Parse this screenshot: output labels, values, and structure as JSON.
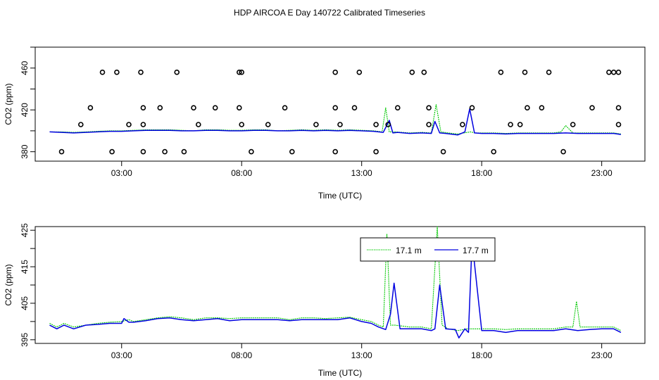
{
  "title": "HDP AIRCOA E  Day 140722  Calibrated Timeseries",
  "colors": {
    "series_a": "#00c800",
    "series_b": "#0000e0",
    "points": "#000000",
    "frame": "#000000"
  },
  "chart_data": [
    {
      "type": "scatter",
      "xlabel": "Time (UTC)",
      "ylabel": "CO2 (ppm)",
      "xlim": [
        -0.6,
        24.8
      ],
      "ylim": [
        371,
        480
      ],
      "xticks": [
        3,
        8,
        13,
        18,
        23
      ],
      "xtick_labels": [
        "03:00",
        "08:00",
        "13:00",
        "18:00",
        "23:00"
      ],
      "yticks": [
        380,
        400,
        420,
        440,
        460,
        480
      ],
      "ytick_labels": [
        "380",
        "",
        "420",
        "",
        "460",
        ""
      ],
      "grid": false,
      "points_x": [
        0.5,
        1.3,
        2.6,
        3.9,
        4.8,
        5.6,
        1.7,
        2.2,
        3.3,
        3.9,
        4.6,
        6.2,
        6.9,
        8.0,
        9.1,
        9.8,
        11.1,
        12.1,
        12.7,
        13.6,
        14.1,
        14.5,
        15.8,
        15.8,
        16.4,
        17.2,
        17.6,
        18.5,
        19.2,
        19.6,
        19.9,
        20.5,
        21.4,
        21.8,
        22.6,
        23.5,
        23.7,
        23.7,
        3.9,
        2.8,
        6.0,
        5.3,
        7.9,
        8.4,
        10.1,
        11.9,
        11.9,
        12.9,
        13.6,
        15.1,
        15.6,
        18.8,
        19.8,
        20.8,
        23.3,
        23.7,
        8.0,
        11.9,
        3.8,
        7.9
      ],
      "points_y": [
        380,
        406,
        380,
        380,
        380,
        380,
        422,
        456,
        406,
        422,
        422,
        406,
        422,
        406,
        406,
        422,
        406,
        406,
        422,
        380,
        406,
        422,
        406,
        422,
        380,
        406,
        422,
        380,
        406,
        406,
        422,
        422,
        380,
        406,
        422,
        456,
        422,
        406,
        406,
        456,
        422,
        456,
        422,
        380,
        380,
        380,
        422,
        456,
        406,
        456,
        456,
        456,
        456,
        456,
        456,
        456,
        456,
        456,
        456,
        456
      ],
      "series": [
        {
          "name": "17.1 m",
          "color": "#00c800",
          "x": [
            0,
            0.5,
            1,
            1.5,
            2,
            2.5,
            3,
            3.5,
            4,
            4.5,
            5,
            5.5,
            6,
            6.5,
            7,
            7.5,
            8,
            8.5,
            9,
            9.5,
            10,
            10.5,
            11,
            11.5,
            12,
            12.5,
            13,
            13.5,
            13.85,
            14.0,
            14.15,
            14.4,
            15,
            15.5,
            15.9,
            16.1,
            16.3,
            16.6,
            17.0,
            17.4,
            17.55,
            17.7,
            18,
            18.5,
            19,
            19.5,
            20,
            20.5,
            21,
            21.3,
            21.5,
            21.8,
            22,
            22.5,
            23,
            23.5,
            23.8
          ],
          "y": [
            399,
            399,
            398.5,
            399,
            399.5,
            400,
            400,
            400.5,
            401,
            401,
            401,
            400.5,
            400,
            401,
            401,
            400.5,
            400.5,
            401,
            401,
            400,
            400.5,
            401,
            400.5,
            401,
            400.5,
            401,
            400.5,
            400,
            399,
            422,
            399,
            399,
            398,
            398.5,
            398,
            425,
            399,
            398,
            397,
            398.5,
            399,
            398,
            398,
            398,
            397.5,
            398,
            398,
            398,
            398,
            399,
            405,
            398,
            398,
            398,
            398,
            398,
            397
          ]
        },
        {
          "name": "17.7 m",
          "color": "#0000e0",
          "x": [
            0,
            0.5,
            1,
            1.5,
            2,
            2.5,
            3,
            3.5,
            4,
            4.5,
            5,
            5.5,
            6,
            6.5,
            7,
            7.5,
            8,
            8.5,
            9,
            9.5,
            10,
            10.5,
            11,
            11.5,
            12,
            12.5,
            13,
            13.5,
            13.9,
            14.15,
            14.3,
            14.5,
            15,
            15.5,
            15.9,
            16.05,
            16.25,
            16.5,
            17.0,
            17.3,
            17.5,
            17.7,
            18,
            18.5,
            19,
            19.5,
            20,
            20.5,
            21,
            21.5,
            22,
            22.5,
            23,
            23.5,
            23.8
          ],
          "y": [
            399,
            398.5,
            398,
            398.5,
            399,
            399.5,
            399.5,
            400,
            400.5,
            400.5,
            400.5,
            400,
            400,
            400.5,
            400.5,
            400,
            400,
            400.5,
            400.5,
            400,
            400,
            400.5,
            400,
            400.5,
            400,
            400.5,
            400,
            399.5,
            398.5,
            410,
            398,
            398.5,
            397.5,
            398,
            397.5,
            409,
            398,
            397.5,
            396,
            399,
            421,
            398,
            397.5,
            397.5,
            397,
            397.5,
            397.5,
            397.5,
            397.5,
            398,
            397.5,
            397.5,
            397.5,
            397.5,
            396.5
          ]
        }
      ]
    },
    {
      "type": "line",
      "xlabel": "Time (UTC)",
      "ylabel": "CO2 (ppm)",
      "xlim": [
        -0.6,
        24.8
      ],
      "ylim": [
        394,
        426
      ],
      "xticks": [
        3,
        8,
        13,
        18,
        23
      ],
      "xtick_labels": [
        "03:00",
        "08:00",
        "13:00",
        "18:00",
        "23:00"
      ],
      "yticks": [
        395,
        400,
        405,
        410,
        415,
        420,
        425
      ],
      "ytick_labels": [
        "395",
        "",
        "405",
        "",
        "415",
        "",
        "425"
      ],
      "grid": false,
      "legend": "top-center",
      "series": [
        {
          "name": "17.1 m",
          "color": "#00c800",
          "x": [
            0,
            0.3,
            0.6,
            1,
            1.5,
            2,
            2.5,
            3,
            3.3,
            3.5,
            4,
            4.5,
            5,
            5.5,
            6,
            6.5,
            7,
            7.5,
            8,
            8.5,
            9,
            9.5,
            10,
            10.5,
            11,
            11.5,
            12,
            12.5,
            13,
            13.4,
            13.7,
            13.9,
            14.05,
            14.2,
            14.4,
            15,
            15.5,
            15.9,
            16.15,
            16.35,
            16.6,
            17.0,
            17.4,
            17.6,
            18,
            18.5,
            19,
            19.5,
            20,
            20.5,
            21,
            21.5,
            21.8,
            21.95,
            22.1,
            22.5,
            23,
            23.5,
            23.8
          ],
          "y": [
            399.5,
            398.5,
            399.5,
            398.5,
            399,
            399.5,
            399.8,
            400,
            400.5,
            400,
            400.5,
            401,
            401.3,
            401,
            400.5,
            401,
            401,
            400.8,
            401,
            401,
            401,
            401,
            400.5,
            401,
            401,
            400.8,
            401,
            401.2,
            400.5,
            400,
            399,
            398.5,
            424,
            399,
            399,
            398.5,
            398.5,
            398,
            426,
            399,
            398,
            397.5,
            398,
            398,
            398,
            398,
            397.8,
            398,
            398,
            398,
            398,
            398.5,
            398.5,
            405.5,
            398.5,
            398.5,
            398.5,
            398.5,
            397.5
          ]
        },
        {
          "name": "17.7 m",
          "color": "#0000e0",
          "x": [
            0,
            0.3,
            0.6,
            1,
            1.5,
            2,
            2.5,
            3,
            3.1,
            3.3,
            3.5,
            4,
            4.5,
            5,
            5.5,
            6,
            6.5,
            7,
            7.5,
            8,
            8.5,
            9,
            9.5,
            10,
            10.5,
            11,
            11.5,
            12,
            12.5,
            13,
            13.4,
            13.7,
            14.0,
            14.2,
            14.35,
            14.6,
            15,
            15.5,
            15.9,
            16.05,
            16.25,
            16.5,
            16.9,
            17.05,
            17.3,
            17.45,
            17.6,
            18,
            18.5,
            19,
            19.5,
            20,
            20.5,
            21,
            21.5,
            22,
            22.5,
            23,
            23.5,
            23.8
          ],
          "y": [
            399,
            398,
            399,
            398,
            399,
            399.2,
            399.5,
            399.5,
            400.8,
            399.8,
            399.8,
            400.2,
            400.8,
            401,
            400.5,
            400.2,
            400.5,
            400.8,
            400.2,
            400.5,
            400.5,
            400.5,
            400.5,
            400.2,
            400.5,
            400.5,
            400.5,
            400.5,
            401,
            400,
            399.5,
            398.5,
            397.8,
            402,
            410.5,
            398,
            398,
            398,
            397.5,
            398,
            410,
            398,
            397.8,
            395.5,
            398,
            397,
            422,
            397.5,
            397.5,
            397,
            397.5,
            397.5,
            397.5,
            397.5,
            398,
            397.5,
            397.8,
            398,
            398,
            397
          ]
        }
      ]
    }
  ]
}
